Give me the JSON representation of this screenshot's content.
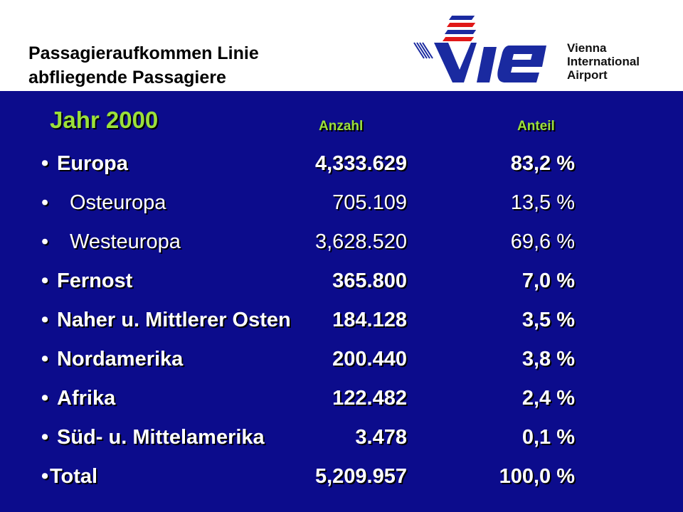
{
  "header": {
    "title_line1": "Passagieraufkommen Linie",
    "title_line2": "abfliegende Passagiere"
  },
  "logo": {
    "icon": "vie-logo-icon",
    "airport_line1": "Vienna",
    "airport_line2": "International",
    "airport_line3": "Airport",
    "colors": {
      "blue": "#1a2aa0",
      "red": "#e01818"
    }
  },
  "table": {
    "year": "Jahr 2000",
    "count_header": "Anzahl",
    "share_header": "Anteil",
    "bullet": "•",
    "rows": [
      {
        "label": "Europa",
        "count": "4,333.629",
        "share": "83,2 %"
      },
      {
        "label": "Osteuropa",
        "count": "705.109",
        "share": "13,5 %"
      },
      {
        "label": "Westeuropa",
        "count": "3,628.520",
        "share": "69,6 %"
      },
      {
        "label": "Fernost",
        "count": "365.800",
        "share": "7,0 %"
      },
      {
        "label": "Naher u. Mittlerer Osten",
        "count": "184.128",
        "share": "3,5 %"
      },
      {
        "label": "Nordamerika",
        "count": "200.440",
        "share": "3,8 %"
      },
      {
        "label": "Afrika",
        "count": "122.482",
        "share": "2,4 %"
      },
      {
        "label": "Süd- u. Mittelamerika",
        "count": "3.478",
        "share": "0,1 %"
      },
      {
        "label": "Total",
        "count": "5,209.957",
        "share": "100,0 %"
      }
    ]
  },
  "colors": {
    "background": "#0c0c8c",
    "heading_green": "#9be03a",
    "text": "#ffffff"
  }
}
